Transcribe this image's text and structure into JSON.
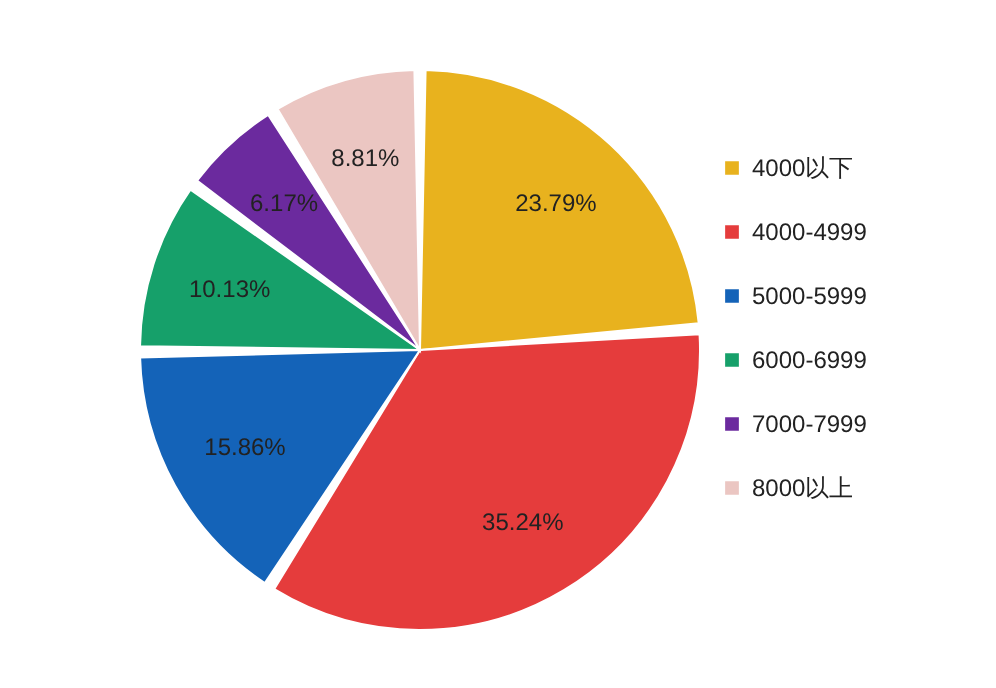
{
  "chart_data": {
    "type": "pie",
    "categories": [
      "4000以下",
      "4000-4999",
      "5000-5999",
      "6000-6999",
      "7000-7999",
      "8000以上"
    ],
    "values": [
      23.79,
      35.24,
      15.86,
      10.13,
      6.17,
      8.81
    ],
    "colors": [
      "#e8b21e",
      "#e53c3c",
      "#1463b8",
      "#16a06a",
      "#6b2a9e",
      "#ebc6c2"
    ],
    "value_labels": [
      "23.79%",
      "35.24%",
      "15.86%",
      "10.13%",
      "6.17%",
      "8.81%"
    ],
    "legend": "right"
  }
}
